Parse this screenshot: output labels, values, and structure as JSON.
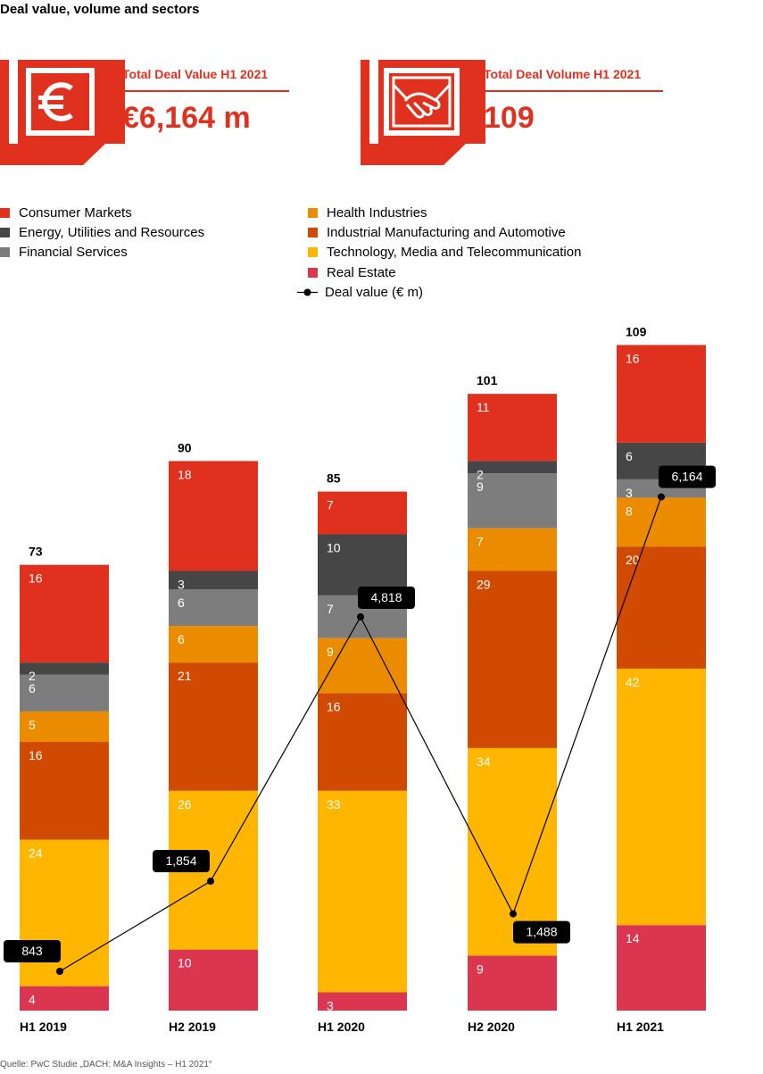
{
  "title": "Deal value, volume and sectors",
  "kpis": [
    {
      "label": "Total Deal Value H1 2021",
      "value": "€6,164 m",
      "icon": "euro-icon"
    },
    {
      "label": "Total Deal Volume H1 2021",
      "value": "109",
      "icon": "handshake-icon"
    }
  ],
  "legend": {
    "line_label": "Deal value (€ m)"
  },
  "source": "Quelle: PwC Studie „DACH: M&A Insights – H1 2021“",
  "colors": {
    "accent": "#e0301e",
    "Consumer Markets": "#e0301e",
    "Energy, Utilities and Resources": "#464646",
    "Financial Services": "#7d7d7d",
    "Health Industries": "#eb8c00",
    "Industrial Manufacturing and Automotive": "#d04a02",
    "Technology, Media and Telecommunication": "#ffb600",
    "Real Estate": "#db3650"
  },
  "chart_data": {
    "type": "bar",
    "stacked": true,
    "categories": [
      "H1 2019",
      "H2 2019",
      "H1 2020",
      "H2 2020",
      "H1 2021"
    ],
    "totals": [
      73,
      90,
      85,
      101,
      109
    ],
    "series": [
      {
        "name": "Consumer Markets",
        "values": [
          16,
          18,
          7,
          11,
          16
        ]
      },
      {
        "name": "Energy, Utilities and Resources",
        "values": [
          2,
          3,
          10,
          2,
          6
        ]
      },
      {
        "name": "Financial Services",
        "values": [
          6,
          6,
          7,
          9,
          3
        ]
      },
      {
        "name": "Health Industries",
        "values": [
          5,
          6,
          9,
          7,
          8
        ]
      },
      {
        "name": "Industrial Manufacturing and Automotive",
        "values": [
          16,
          21,
          16,
          29,
          20
        ]
      },
      {
        "name": "Technology, Media and Telecommunication",
        "values": [
          24,
          26,
          33,
          34,
          42
        ]
      },
      {
        "name": "Real Estate",
        "values": [
          4,
          10,
          3,
          9,
          14
        ]
      }
    ],
    "line": {
      "name": "Deal value (€ m)",
      "values": [
        843,
        1854,
        4818,
        1488,
        6164
      ],
      "labels": [
        "843",
        "1,854",
        "4,818",
        "1,488",
        "6,164"
      ]
    },
    "legend_position": "top",
    "grid": false
  }
}
